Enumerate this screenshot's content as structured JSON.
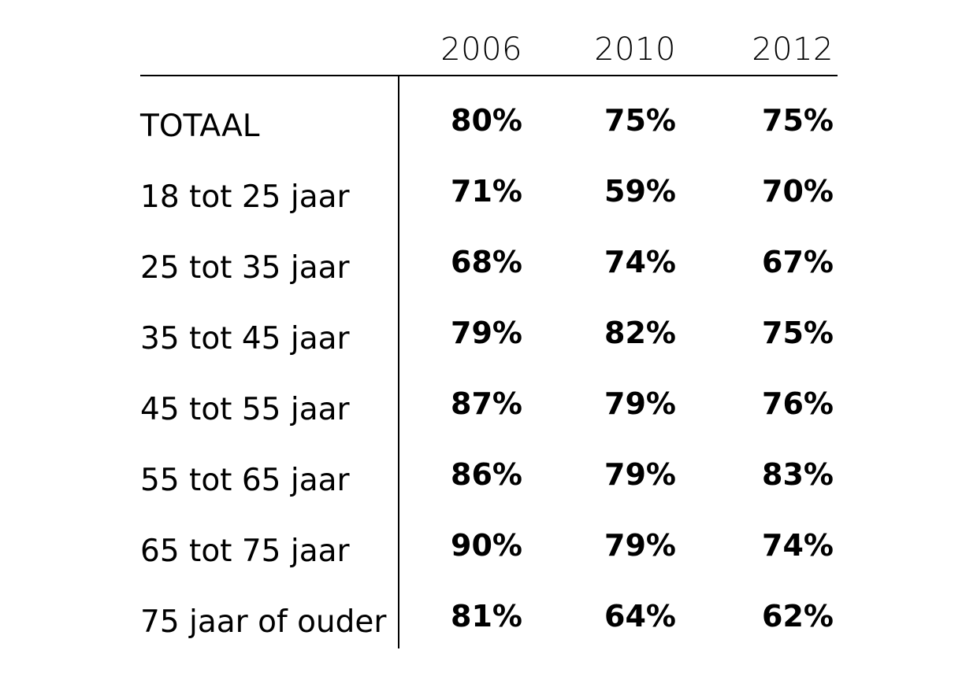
{
  "chart_data": {
    "type": "table",
    "columns": [
      "2006",
      "2010",
      "2012"
    ],
    "rows": [
      {
        "label": "TOTAAL",
        "values": [
          "80%",
          "75%",
          "75%"
        ]
      },
      {
        "label": "18 tot 25 jaar",
        "values": [
          "71%",
          "59%",
          "70%"
        ]
      },
      {
        "label": "25 tot 35 jaar",
        "values": [
          "68%",
          "74%",
          "67%"
        ]
      },
      {
        "label": "35 tot 45 jaar",
        "values": [
          "79%",
          "82%",
          "75%"
        ]
      },
      {
        "label": "45 tot 55 jaar",
        "values": [
          "87%",
          "79%",
          "76%"
        ]
      },
      {
        "label": "55 tot 65 jaar",
        "values": [
          "86%",
          "79%",
          "83%"
        ]
      },
      {
        "label": "65 tot 75 jaar",
        "values": [
          "90%",
          "79%",
          "74%"
        ]
      },
      {
        "label": "75 jaar of ouder",
        "values": [
          "81%",
          "64%",
          "62%"
        ]
      }
    ]
  }
}
